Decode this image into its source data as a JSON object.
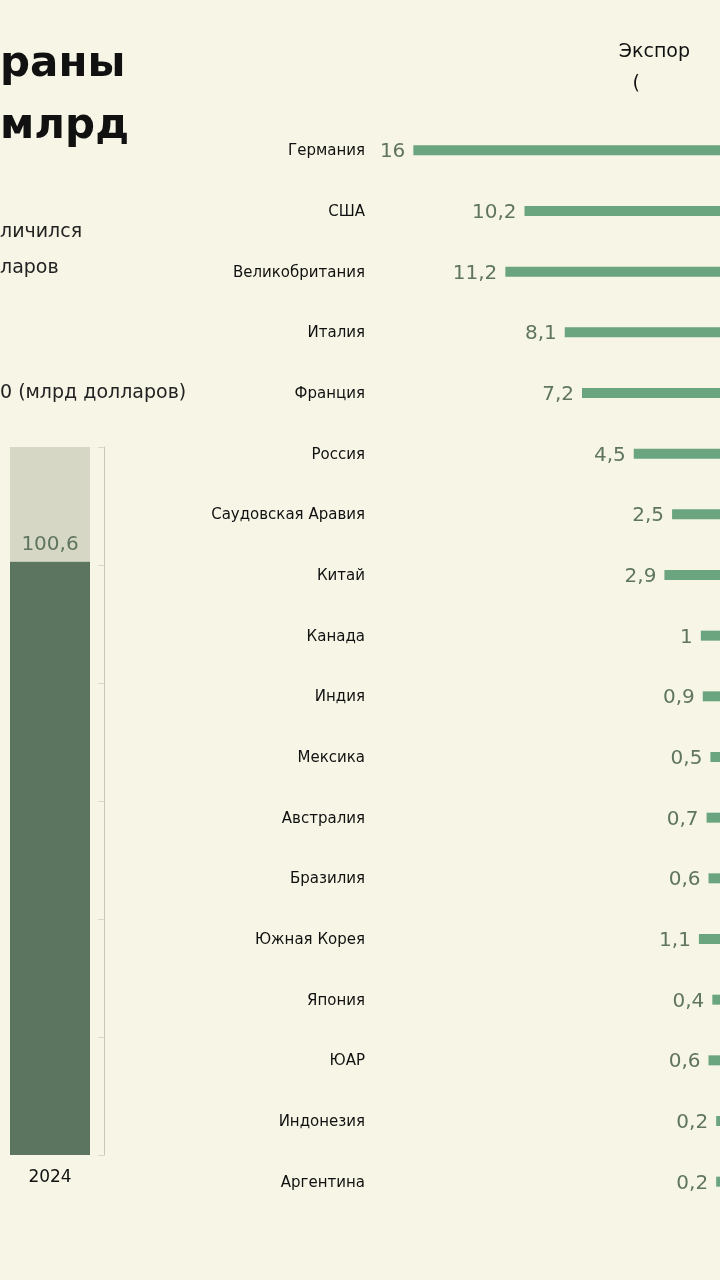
{
  "chart_data": [
    {
      "type": "bar",
      "title": "раны млрд",
      "subtitle": "личился ларов",
      "annotations": [
        "0 (млрд долларов)"
      ],
      "categories": [
        "2024"
      ],
      "stacked": true,
      "ylim": [
        0,
        120
      ],
      "yticks": [
        {
          "value": 0,
          "label": null
        },
        {
          "value": 20,
          "label": null
        },
        {
          "value": 40,
          "label": null
        },
        {
          "value": 60,
          "label": null
        },
        {
          "value": 80,
          "label": null
        },
        {
          "value": 100,
          "label": null
        },
        {
          "value": 120,
          "label": null
        }
      ],
      "tick_labels": "x",
      "grid": false,
      "series": [
        {
          "color": "#5b7560",
          "values": [
            100.6
          ],
          "value_labels": [
            "100,6"
          ]
        },
        {
          "color": "#d6d8c5",
          "values": [
            19.4
          ]
        }
      ]
    },
    {
      "type": "bar",
      "orientation": "horizontal",
      "title": "Экспор",
      "subtitle": "(",
      "color": "#6aa57f",
      "grid": false,
      "tick_labels": "y",
      "categories": [
        "Германия",
        "США",
        "Великобритания",
        "Италия",
        "Франция",
        "Россия",
        "Саудовская Аравия",
        "Китай",
        "Канада",
        "Индия",
        "Мексика",
        "Австралия",
        "Бразилия",
        "Южная Корея",
        "Япония",
        "ЮАР",
        "Индонезия",
        "Аргентина"
      ],
      "values": [
        16,
        10.2,
        11.2,
        8.1,
        7.2,
        4.5,
        2.5,
        2.9,
        1,
        0.9,
        0.5,
        0.7,
        0.6,
        1.1,
        0.4,
        0.6,
        0.2,
        0.2
      ],
      "value_labels": [
        "16",
        "10,2",
        "11,2",
        "8,1",
        "7,2",
        "4,5",
        "2,5",
        "2,9",
        "1",
        "0,9",
        "0,5",
        "0,7",
        "0,6",
        "1,1",
        "0,4",
        "0,6",
        "0,2",
        "0,2"
      ]
    }
  ]
}
